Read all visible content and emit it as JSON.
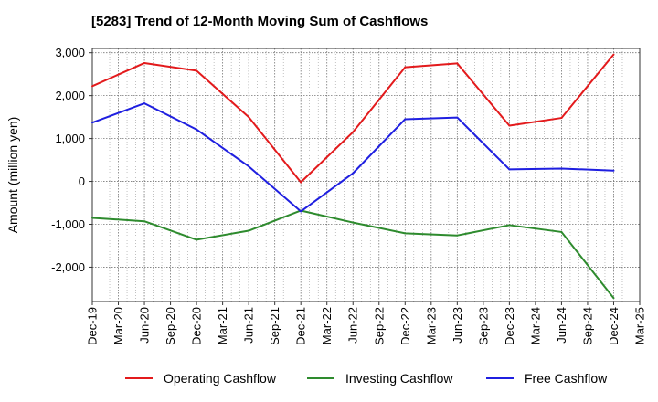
{
  "chart_data": {
    "type": "line",
    "title": "[5283]  Trend of 12-Month Moving Sum of Cashflows",
    "ylabel": "Amount (million yen)",
    "xlabel": "",
    "ylim": [
      -2800,
      3100
    ],
    "yticks": [
      3000,
      2000,
      1000,
      0,
      -1000,
      -2000
    ],
    "ytick_labels": [
      "3,000",
      "2,000",
      "1,000",
      "0",
      "-1,000",
      "-2,000"
    ],
    "x_ticks": [
      "Dec-19",
      "Mar-20",
      "Jun-20",
      "Sep-20",
      "Dec-20",
      "Mar-21",
      "Jun-21",
      "Sep-21",
      "Dec-21",
      "Mar-22",
      "Jun-22",
      "Sep-22",
      "Dec-22",
      "Mar-23",
      "Jun-23",
      "Sep-23",
      "Dec-23",
      "Mar-24",
      "Jun-24",
      "Sep-24",
      "Dec-24",
      "Mar-25"
    ],
    "x": [
      "Dec-19",
      "Jun-20",
      "Dec-20",
      "Jun-21",
      "Dec-21",
      "Jun-22",
      "Dec-22",
      "Jun-23",
      "Dec-23",
      "Jun-24",
      "Dec-24"
    ],
    "grid": true,
    "legend_position": "bottom",
    "series": [
      {
        "name": "Operating Cashflow",
        "color": "#e31a1c",
        "values": [
          2220,
          2760,
          2580,
          1500,
          -20,
          1150,
          2660,
          2750,
          1300,
          1480,
          2960
        ]
      },
      {
        "name": "Investing Cashflow",
        "color": "#2e8b2e",
        "values": [
          -850,
          -930,
          -1360,
          -1150,
          -680,
          -960,
          -1210,
          -1260,
          -1020,
          -1180,
          -2720
        ]
      },
      {
        "name": "Free Cashflow",
        "color": "#1f1fe0",
        "values": [
          1370,
          1820,
          1210,
          350,
          -700,
          190,
          1450,
          1490,
          280,
          300,
          250
        ]
      }
    ]
  }
}
